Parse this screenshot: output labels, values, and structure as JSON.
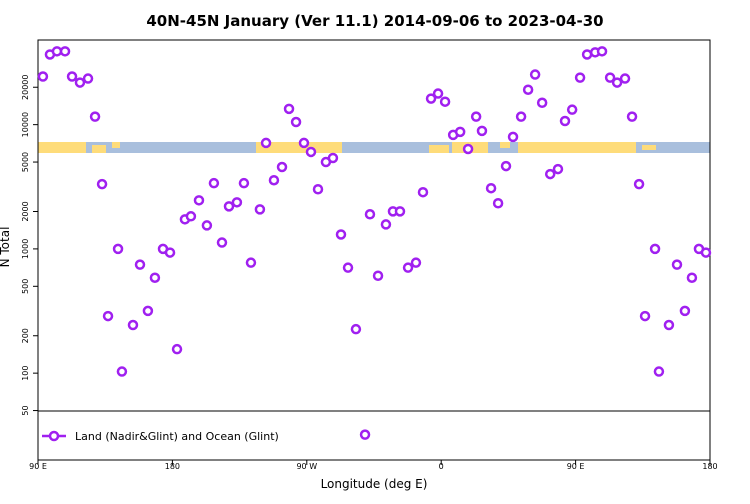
{
  "chart_data": {
    "type": "scatter",
    "title": "40N-45N January (Ver 11.1)   2014-09-06 to 2023-04-30",
    "x_label": "Longitude (deg E)",
    "y_label": "N Total",
    "log_y": true,
    "xlim": [
      90,
      540
    ],
    "ylim": [
      20,
      48000
    ],
    "xticks": [
      {
        "value": 90,
        "label": "90 E"
      },
      180,
      {
        "value": 270,
        "label": "90 W"
      },
      {
        "value": 360,
        "label": "0"
      },
      {
        "value": 450,
        "label": "90 E"
      },
      {
        "value": 540,
        "label": "180"
      }
    ],
    "yticks": [
      50,
      100,
      200,
      500,
      1000,
      2000,
      5000,
      10000,
      20000
    ],
    "legend": "lower left",
    "series": [
      {
        "name": "Land (Nadir&Glint) and Ocean (Glint)",
        "color": "#a020f0",
        "x": [
          93.3,
          98.0,
          102.7,
          108.1,
          112.8,
          118.1,
          123.5,
          128.2,
          132.9,
          136.9,
          143.6,
          146.2,
          153.6,
          158.3,
          163.6,
          168.3,
          173.7,
          178.4,
          183.1,
          188.4,
          192.4,
          197.8,
          203.1,
          207.8,
          213.2,
          217.9,
          223.2,
          227.9,
          232.6,
          238.6,
          242.7,
          248.0,
          253.4,
          258.1,
          262.8,
          268.1,
          272.8,
          277.5,
          282.8,
          287.5,
          292.9,
          297.6,
          302.9,
          309.0,
          312.3,
          317.7,
          323.0,
          327.7,
          332.4,
          337.8,
          343.1,
          347.8,
          353.2,
          357.9,
          362.6,
          368.0,
          372.7,
          378.0,
          383.4,
          387.3,
          393.4,
          398.1,
          403.4,
          408.1,
          413.5,
          418.2,
          422.9,
          427.6,
          433.0,
          438.2,
          442.9,
          447.7,
          453.0,
          457.7,
          463.1,
          467.7,
          473.1,
          477.8,
          483.1,
          487.8,
          492.5,
          496.5,
          503.2,
          505.8,
          512.5,
          517.9,
          523.2,
          527.9,
          532.6,
          537.3
        ],
        "values": [
          24400,
          36700,
          38900,
          38900,
          24400,
          21800,
          23500,
          11600,
          3320,
          288,
          1000,
          103,
          244,
          747,
          317,
          586,
          1000,
          934,
          156,
          1730,
          1830,
          2460,
          1545,
          3380,
          1125,
          2200,
          2370,
          3380,
          775,
          2080,
          7130,
          3570,
          4560,
          13400,
          10500,
          7130,
          6030,
          3020,
          5000,
          5390,
          1306,
          706,
          226,
          32,
          1900,
          608,
          1574,
          2005,
          2005,
          706,
          775,
          2860,
          16200,
          17800,
          15300,
          8270,
          8750,
          6370,
          11600,
          8910,
          3080,
          2330,
          4640,
          7970,
          11600,
          19100,
          25300,
          15000,
          4000,
          4390,
          10700,
          13200,
          23900,
          36700,
          38200,
          38900,
          23900,
          21800,
          23500,
          11600,
          3320,
          288,
          1000,
          103,
          244,
          747,
          317,
          586,
          1000,
          934
        ]
      }
    ]
  }
}
